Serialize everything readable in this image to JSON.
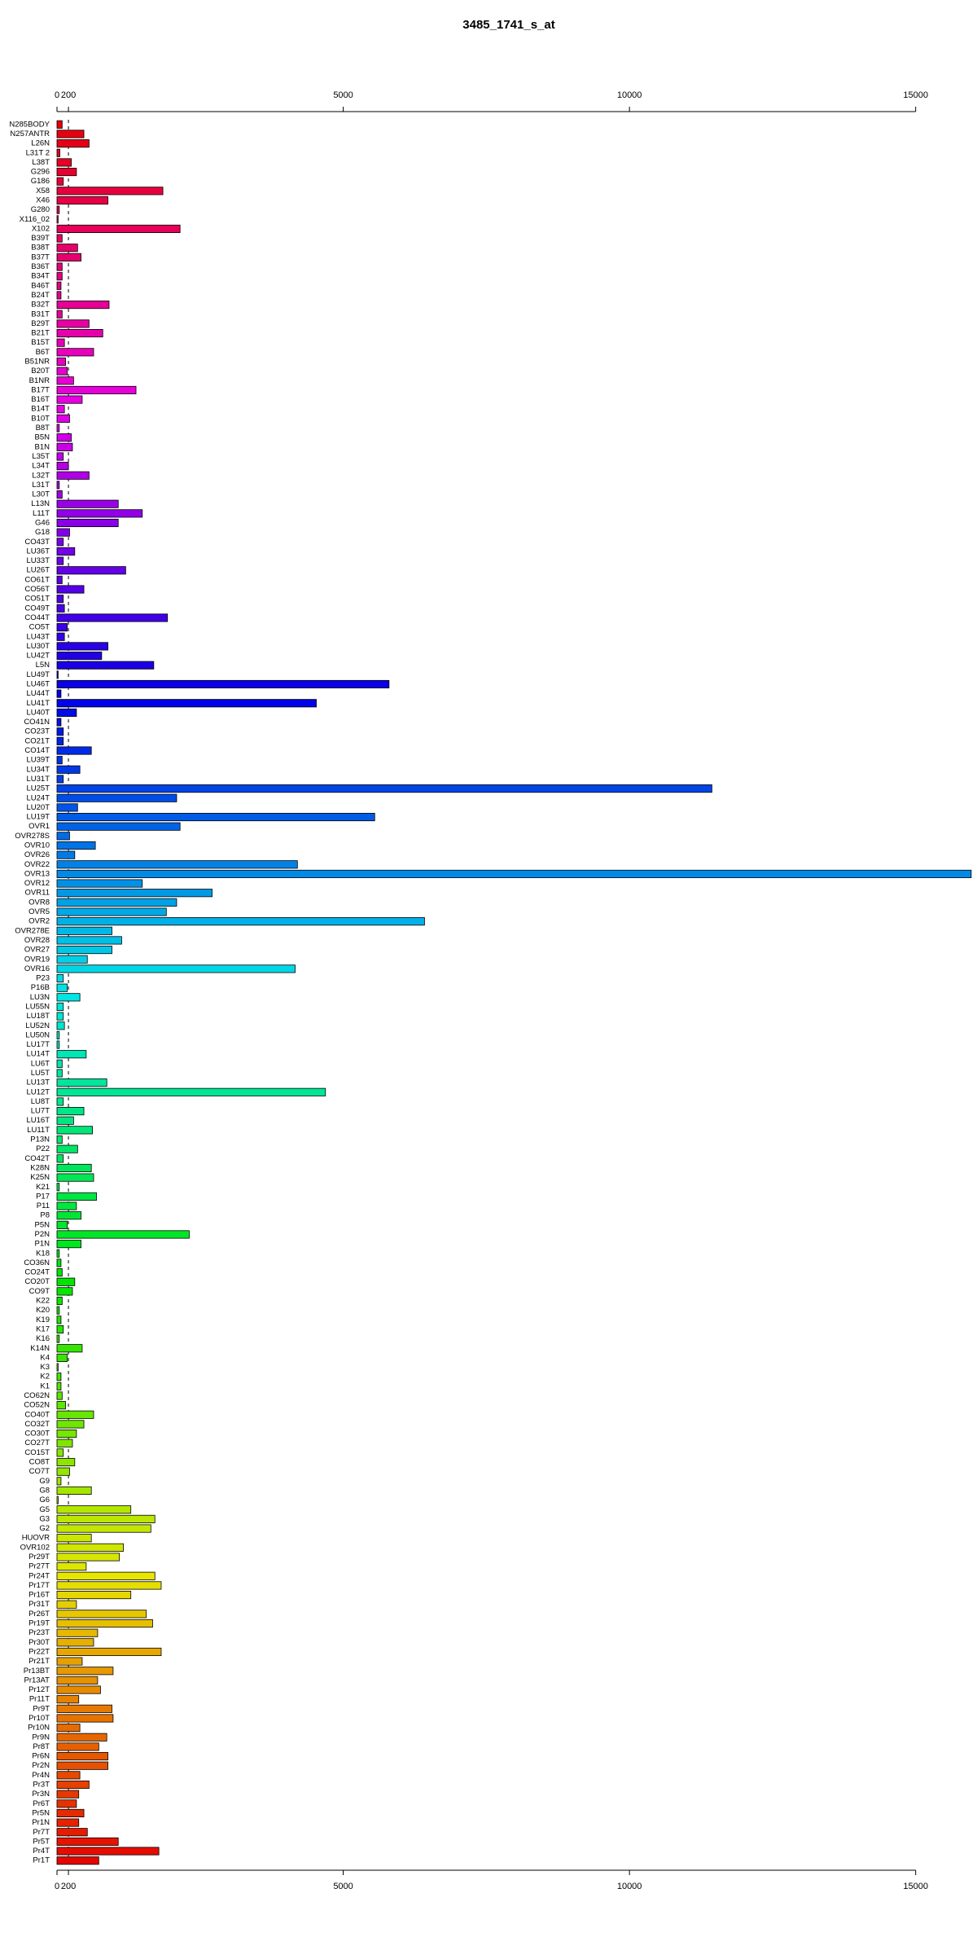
{
  "chart_data": {
    "type": "bar",
    "orientation": "horizontal",
    "title": "3485_1741_s_at",
    "categories": [
      "N285BODY",
      "N257ANTR",
      "L26N",
      "L31T 2",
      "L38T",
      "G296",
      "G186",
      "X58",
      "X46",
      "G280",
      "X116_02",
      "X102",
      "B39T",
      "B38T",
      "B37T",
      "B36T",
      "B34T",
      "B46T",
      "B24T",
      "B32T",
      "B31T",
      "B29T",
      "B21T",
      "B15T",
      "B6T",
      "B51NR",
      "B20T",
      "B1NR",
      "B17T",
      "B16T",
      "B14T",
      "B10T",
      "B8T",
      "B5N",
      "B1N",
      "L35T",
      "L34T",
      "L32T",
      "L31T",
      "L30T",
      "L13N",
      "L11T",
      "G46",
      "G18",
      "CO43T",
      "LU36T",
      "LU33T",
      "LU26T",
      "CO61T",
      "CO56T",
      "CO51T",
      "CO49T",
      "CO44T",
      "CO5T",
      "LU43T",
      "LU30T",
      "LU42T",
      "L5N",
      "LU49T",
      "LU46T",
      "LU44T",
      "LU41T",
      "LU40T",
      "CO41N",
      "CO23T",
      "CO21T",
      "CO14T",
      "LU39T",
      "LU34T",
      "LU31T",
      "LU25T",
      "LU24T",
      "LU20T",
      "LU19T",
      "OVR1",
      "OVR278S",
      "OVR10",
      "OVR26",
      "OVR22",
      "OVR13",
      "OVR12",
      "OVR11",
      "OVR8",
      "OVR5",
      "OVR2",
      "OVR278E",
      "OVR28",
      "OVR27",
      "OVR19",
      "OVR16",
      "P23",
      "P16B",
      "LU3N",
      "LU55N",
      "LU18T",
      "LU52N",
      "LU50N",
      "LU17T",
      "LU14T",
      "LU6T",
      "LU5T",
      "LU13T",
      "LU12T",
      "LU8T",
      "LU7T",
      "LU16T",
      "LU11T",
      "P13N",
      "P22",
      "CO42T",
      "K28N",
      "K25N",
      "K21",
      "P17",
      "P11",
      "P8",
      "P5N",
      "P2N",
      "P1N",
      "K18",
      "CO36N",
      "CO24T",
      "CO20T",
      "CO9T",
      "K22",
      "K20",
      "K19",
      "K17",
      "K16",
      "K14N",
      "K4",
      "K3",
      "K2",
      "K1",
      "CO62N",
      "CO52N",
      "CO40T",
      "CO32T",
      "CO30T",
      "CO27T",
      "CO15T",
      "CO8T",
      "CO7T",
      "G9",
      "G8",
      "G6",
      "G5",
      "G3",
      "G2",
      "HUOVR",
      "OVR102",
      "Pr29T",
      "Pr27T",
      "Pr24T",
      "Pr17T",
      "Pr16T",
      "Pr31T",
      "Pr26T",
      "Pr19T",
      "Pr23T",
      "Pr30T",
      "Pr22T",
      "Pr21T",
      "Pr13BT",
      "Pr13AT",
      "Pr12T",
      "Pr11T",
      "Pr9T",
      "Pr10T",
      "Pr10N",
      "Pr9N",
      "Pr8T",
      "Pr6N",
      "Pr2N",
      "Pr4N",
      "Pr3T",
      "Pr3N",
      "Pr6T",
      "Pr5N",
      "Pr1N",
      "Pr7T",
      "Pr5T",
      "Pr4T",
      "Pr1T"
    ],
    "values": [
      90,
      470,
      560,
      50,
      250,
      340,
      110,
      1850,
      890,
      40,
      20,
      2150,
      90,
      360,
      420,
      90,
      90,
      70,
      70,
      910,
      90,
      560,
      800,
      130,
      640,
      150,
      180,
      290,
      1380,
      440,
      130,
      220,
      40,
      250,
      270,
      110,
      200,
      560,
      40,
      90,
      1070,
      1490,
      1070,
      220,
      110,
      310,
      110,
      1200,
      90,
      470,
      110,
      130,
      1930,
      180,
      130,
      890,
      780,
      1690,
      20,
      5800,
      70,
      4530,
      340,
      70,
      110,
      110,
      600,
      90,
      400,
      110,
      11440,
      2090,
      360,
      5550,
      2150,
      220,
      670,
      310,
      4200,
      15970,
      1490,
      2710,
      2090,
      1910,
      6420,
      960,
      1130,
      960,
      530,
      4160,
      110,
      180,
      400,
      110,
      110,
      130,
      40,
      40,
      510,
      90,
      90,
      870,
      4690,
      110,
      470,
      290,
      620,
      90,
      360,
      110,
      600,
      640,
      40,
      690,
      340,
      420,
      180,
      2310,
      420,
      40,
      70,
      90,
      310,
      270,
      90,
      40,
      70,
      110,
      40,
      440,
      180,
      20,
      70,
      70,
      90,
      150,
      640,
      470,
      340,
      270,
      110,
      310,
      220,
      70,
      600,
      20,
      1290,
      1710,
      1640,
      600,
      1160,
      1090,
      510,
      1710,
      1820,
      1290,
      340,
      1560,
      1670,
      710,
      640,
      1820,
      440,
      980,
      710,
      760,
      380,
      960,
      980,
      400,
      870,
      730,
      890,
      890,
      400,
      560,
      380,
      340,
      470,
      380,
      530,
      1070,
      1780,
      730
    ],
    "colors": [
      "hsl(358,100%,45%)",
      "hsl(356,100%,45%)",
      "hsl(354,100%,45%)",
      "hsl(352,100%,45%)",
      "hsl(350,100%,45%)",
      "hsl(348,100%,45%)",
      "hsl(346,100%,45%)",
      "hsl(344,100%,45%)",
      "hsl(342,100%,45%)",
      "hsl(340,100%,45%)",
      "hsl(339,100%,45%)",
      "hsl(337,100%,45%)",
      "hsl(335,100%,45%)",
      "hsl(333,100%,45%)",
      "hsl(331,100%,45%)",
      "hsl(329,100%,45%)",
      "hsl(327,100%,45%)",
      "hsl(325,100%,45%)",
      "hsl(323,100%,45%)",
      "hsl(321,100%,45%)",
      "hsl(319,100%,45%)",
      "hsl(317,100%,45%)",
      "hsl(315,100%,45%)",
      "hsl(313,100%,45%)",
      "hsl(311,100%,45%)",
      "hsl(309,100%,45%)",
      "hsl(307,100%,45%)",
      "hsl(305,100%,45%)",
      "hsl(303,100%,45%)",
      "hsl(301,100%,45%)",
      "hsl(300,100%,45%)",
      "hsl(298,100%,45%)",
      "hsl(296,100%,45%)",
      "hsl(294,100%,45%)",
      "hsl(292,100%,45%)",
      "hsl(290,100%,45%)",
      "hsl(288,100%,45%)",
      "hsl(286,100%,45%)",
      "hsl(284,100%,45%)",
      "hsl(282,100%,45%)",
      "hsl(280,100%,45%)",
      "hsl(278,100%,45%)",
      "hsl(276,100%,45%)",
      "hsl(274,100%,45%)",
      "hsl(272,100%,45%)",
      "hsl(270,100%,45%)",
      "hsl(268,100%,45%)",
      "hsl(266,100%,45%)",
      "hsl(264,100%,45%)",
      "hsl(262,100%,45%)",
      "hsl(261,100%,45%)",
      "hsl(259,100%,45%)",
      "hsl(257,100%,45%)",
      "hsl(255,100%,45%)",
      "hsl(253,100%,45%)",
      "hsl(251,100%,45%)",
      "hsl(249,100%,45%)",
      "hsl(247,100%,45%)",
      "hsl(245,100%,45%)",
      "hsl(243,100%,45%)",
      "hsl(241,100%,45%)",
      "hsl(239,100%,45%)",
      "hsl(237,100%,45%)",
      "hsl(235,100%,45%)",
      "hsl(233,100%,45%)",
      "hsl(231,100%,45%)",
      "hsl(229,100%,45%)",
      "hsl(227,100%,45%)",
      "hsl(225,100%,45%)",
      "hsl(223,100%,45%)",
      "hsl(222,100%,45%)",
      "hsl(220,100%,45%)",
      "hsl(218,100%,45%)",
      "hsl(216,100%,45%)",
      "hsl(214,100%,45%)",
      "hsl(212,100%,45%)",
      "hsl(210,100%,45%)",
      "hsl(208,100%,45%)",
      "hsl(206,100%,45%)",
      "hsl(204,100%,45%)",
      "hsl(202,100%,45%)",
      "hsl(200,100%,45%)",
      "hsl(198,100%,45%)",
      "hsl(196,100%,45%)",
      "hsl(194,100%,45%)",
      "hsl(192,100%,45%)",
      "hsl(190,100%,45%)",
      "hsl(188,100%,45%)",
      "hsl(186,100%,45%)",
      "hsl(184,100%,45%)",
      "hsl(183,100%,45%)",
      "hsl(181,100%,45%)",
      "hsl(179,100%,45%)",
      "hsl(177,100%,45%)",
      "hsl(175,100%,45%)",
      "hsl(173,100%,45%)",
      "hsl(171,100%,45%)",
      "hsl(169,100%,45%)",
      "hsl(167,100%,45%)",
      "hsl(165,100%,45%)",
      "hsl(163,100%,45%)",
      "hsl(161,100%,45%)",
      "hsl(159,100%,45%)",
      "hsl(157,100%,45%)",
      "hsl(155,100%,45%)",
      "hsl(153,100%,45%)",
      "hsl(151,100%,45%)",
      "hsl(149,100%,45%)",
      "hsl(147,100%,45%)",
      "hsl(145,100%,45%)",
      "hsl(144,100%,45%)",
      "hsl(142,100%,45%)",
      "hsl(140,100%,45%)",
      "hsl(138,100%,45%)",
      "hsl(136,100%,45%)",
      "hsl(134,100%,45%)",
      "hsl(132,100%,45%)",
      "hsl(130,100%,45%)",
      "hsl(128,100%,45%)",
      "hsl(126,100%,45%)",
      "hsl(124,100%,45%)",
      "hsl(122,100%,45%)",
      "hsl(120,100%,45%)",
      "hsl(118,100%,45%)",
      "hsl(116,100%,45%)",
      "hsl(114,100%,45%)",
      "hsl(112,100%,45%)",
      "hsl(110,100%,45%)",
      "hsl(108,100%,45%)",
      "hsl(106,100%,45%)",
      "hsl(105,100%,45%)",
      "hsl(103,100%,45%)",
      "hsl(101,100%,45%)",
      "hsl(99,100%,45%)",
      "hsl(97,100%,45%)",
      "hsl(95,100%,45%)",
      "hsl(93,100%,45%)",
      "hsl(91,100%,45%)",
      "hsl(89,100%,45%)",
      "hsl(87,100%,45%)",
      "hsl(85,100%,45%)",
      "hsl(83,100%,45%)",
      "hsl(81,100%,45%)",
      "hsl(79,100%,45%)",
      "hsl(77,100%,45%)",
      "hsl(75,100%,45%)",
      "hsl(73,100%,45%)",
      "hsl(71,100%,45%)",
      "hsl(69,100%,45%)",
      "hsl(67,100%,45%)",
      "hsl(66,100%,45%)",
      "hsl(64,100%,45%)",
      "hsl(62,100%,45%)",
      "hsl(60,100%,45%)",
      "hsl(58,100%,45%)",
      "hsl(56,100%,45%)",
      "hsl(54,100%,45%)",
      "hsl(52,100%,45%)",
      "hsl(50,100%,45%)",
      "hsl(48,100%,45%)",
      "hsl(46,100%,45%)",
      "hsl(44,100%,45%)",
      "hsl(42,100%,45%)",
      "hsl(40,100%,45%)",
      "hsl(38,100%,45%)",
      "hsl(36,100%,45%)",
      "hsl(34,100%,45%)",
      "hsl(32,100%,45%)",
      "hsl(30,100%,45%)",
      "hsl(28,100%,45%)",
      "hsl(27,100%,45%)",
      "hsl(25,100%,45%)",
      "hsl(23,100%,45%)",
      "hsl(21,100%,45%)",
      "hsl(19,100%,45%)",
      "hsl(17,100%,45%)",
      "hsl(15,100%,45%)",
      "hsl(13,100%,45%)",
      "hsl(11,100%,45%)",
      "hsl(9,100%,45%)",
      "hsl(7,100%,45%)",
      "hsl(5,100%,45%)",
      "hsl(3,100%,45%)",
      "hsl(1,100%,45%)"
    ],
    "xlim": [
      0,
      16000
    ],
    "xticks": [
      0,
      200,
      5000,
      10000,
      15000
    ],
    "reference_line": 200
  }
}
